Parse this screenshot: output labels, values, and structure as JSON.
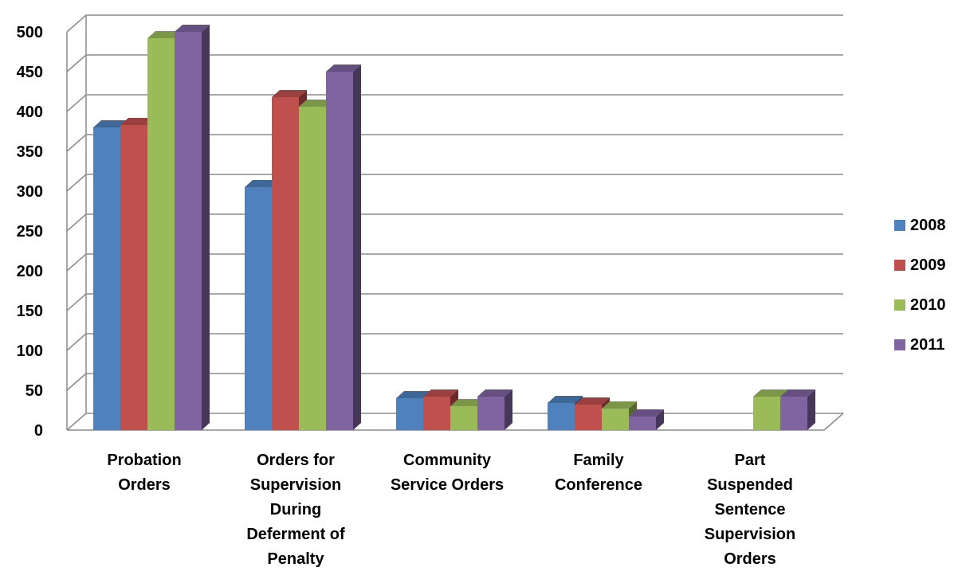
{
  "chart_data": {
    "type": "bar",
    "title": "",
    "xlabel": "",
    "ylabel": "",
    "categories": [
      "Probation Orders",
      "Orders for Supervision During Deferment of Penalty",
      "Community Service Orders",
      "Family Conference",
      "Part Suspended Sentence Supervision Orders"
    ],
    "category_lines": [
      [
        "Probation",
        "Orders"
      ],
      [
        "Orders for",
        "Supervision",
        "During",
        "Deferment of",
        "Penalty"
      ],
      [
        "Community",
        "Service Orders"
      ],
      [
        "Family",
        "Conference"
      ],
      [
        "Part",
        "Suspended",
        "Sentence",
        "Supervision",
        "Orders"
      ]
    ],
    "series": [
      {
        "name": "2008",
        "color": "#4F81BD",
        "values": [
          380,
          305,
          40,
          34,
          0
        ]
      },
      {
        "name": "2009",
        "color": "#C0504D",
        "values": [
          383,
          418,
          42,
          32,
          0
        ]
      },
      {
        "name": "2010",
        "color": "#9BBB59",
        "values": [
          492,
          406,
          30,
          27,
          42
        ]
      },
      {
        "name": "2011",
        "color": "#8064A2",
        "values": [
          500,
          450,
          42,
          17,
          42
        ]
      }
    ],
    "ylim": [
      0,
      500
    ],
    "yticks": [
      0,
      50,
      100,
      150,
      200,
      250,
      300,
      350,
      400,
      450,
      500
    ],
    "grid": true,
    "legend_position": "right"
  }
}
